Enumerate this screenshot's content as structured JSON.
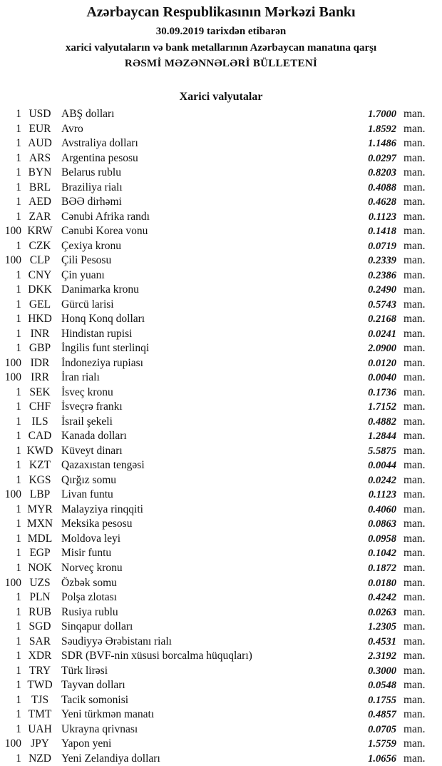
{
  "header": {
    "title": "Azərbaycan Respublikasının Mərkəzi Bankı",
    "date_line": "30.09.2019  tarixdən etibarən",
    "subtitle": "xarici valyutaların və bank metallarının Azərbaycan manatına qarşı",
    "bulletin": "RƏSMİ MƏZƏNNƏLƏRİ BÜLLETENİ"
  },
  "section_title": "Xarici valyutalar",
  "rates": [
    {
      "amount": "1",
      "code": "USD",
      "name": "ABŞ dolları",
      "value": "1.7000",
      "unit": "man."
    },
    {
      "amount": "1",
      "code": "EUR",
      "name": "Avro",
      "value": "1.8592",
      "unit": "man."
    },
    {
      "amount": "1",
      "code": "AUD",
      "name": "Avstraliya dolları",
      "value": "1.1486",
      "unit": "man."
    },
    {
      "amount": "1",
      "code": "ARS",
      "name": "Argentina pesosu",
      "value": "0.0297",
      "unit": "man."
    },
    {
      "amount": "1",
      "code": "BYN",
      "name": "Belarus rublu",
      "value": "0.8203",
      "unit": "man."
    },
    {
      "amount": "1",
      "code": "BRL",
      "name": "Braziliya rialı",
      "value": "0.4088",
      "unit": "man."
    },
    {
      "amount": "1",
      "code": "AED",
      "name": "BƏƏ dirhəmi",
      "value": "0.4628",
      "unit": "man."
    },
    {
      "amount": "1",
      "code": "ZAR",
      "name": "Cənubi Afrika randı",
      "value": "0.1123",
      "unit": "man."
    },
    {
      "amount": "100",
      "code": "KRW",
      "name": "Cənubi Korea vonu",
      "value": "0.1418",
      "unit": "man."
    },
    {
      "amount": "1",
      "code": "CZK",
      "name": "Çexiya kronu",
      "value": "0.0719",
      "unit": "man."
    },
    {
      "amount": "100",
      "code": "CLP",
      "name": "Çili Pesosu",
      "value": "0.2339",
      "unit": "man."
    },
    {
      "amount": "1",
      "code": "CNY",
      "name": "Çin yuanı",
      "value": "0.2386",
      "unit": "man."
    },
    {
      "amount": "1",
      "code": "DKK",
      "name": "Danimarka kronu",
      "value": "0.2490",
      "unit": "man."
    },
    {
      "amount": "1",
      "code": "GEL",
      "name": "Gürcü larisi",
      "value": "0.5743",
      "unit": "man."
    },
    {
      "amount": "1",
      "code": "HKD",
      "name": "Honq Konq dolları",
      "value": "0.2168",
      "unit": "man."
    },
    {
      "amount": "1",
      "code": "INR",
      "name": "Hindistan rupisi",
      "value": "0.0241",
      "unit": "man."
    },
    {
      "amount": "1",
      "code": "GBP",
      "name": "İngilis funt sterlinqi",
      "value": "2.0900",
      "unit": "man."
    },
    {
      "amount": "100",
      "code": "IDR",
      "name": "İndoneziya rupiası",
      "value": "0.0120",
      "unit": "man."
    },
    {
      "amount": "100",
      "code": "IRR",
      "name": "İran rialı",
      "value": "0.0040",
      "unit": "man."
    },
    {
      "amount": "1",
      "code": "SEK",
      "name": "İsveç kronu",
      "value": "0.1736",
      "unit": "man."
    },
    {
      "amount": "1",
      "code": "CHF",
      "name": "İsveçrə frankı",
      "value": "1.7152",
      "unit": "man."
    },
    {
      "amount": "1",
      "code": "ILS",
      "name": "İsrail şekeli",
      "value": "0.4882",
      "unit": "man."
    },
    {
      "amount": "1",
      "code": "CAD",
      "name": "Kanada dolları",
      "value": "1.2844",
      "unit": "man."
    },
    {
      "amount": "1",
      "code": "KWD",
      "name": "Küveyt dinarı",
      "value": "5.5875",
      "unit": "man."
    },
    {
      "amount": "1",
      "code": "KZT",
      "name": "Qazaxıstan tengəsi",
      "value": "0.0044",
      "unit": "man."
    },
    {
      "amount": "1",
      "code": "KGS",
      "name": "Qırğız somu",
      "value": "0.0242",
      "unit": "man."
    },
    {
      "amount": "100",
      "code": "LBP",
      "name": "Livan funtu",
      "value": "0.1123",
      "unit": "man."
    },
    {
      "amount": "1",
      "code": "MYR",
      "name": "Malayziya rinqqiti",
      "value": "0.4060",
      "unit": "man."
    },
    {
      "amount": "1",
      "code": "MXN",
      "name": "Meksika pesosu",
      "value": "0.0863",
      "unit": "man."
    },
    {
      "amount": "1",
      "code": "MDL",
      "name": "Moldova leyi",
      "value": "0.0958",
      "unit": "man."
    },
    {
      "amount": "1",
      "code": "EGP",
      "name": "Misir funtu",
      "value": "0.1042",
      "unit": "man."
    },
    {
      "amount": "1",
      "code": "NOK",
      "name": "Norveç kronu",
      "value": "0.1872",
      "unit": "man."
    },
    {
      "amount": "100",
      "code": "UZS",
      "name": "Özbək somu",
      "value": "0.0180",
      "unit": "man."
    },
    {
      "amount": "1",
      "code": "PLN",
      "name": "Polşa zlotası",
      "value": "0.4242",
      "unit": "man."
    },
    {
      "amount": "1",
      "code": "RUB",
      "name": "Rusiya rublu",
      "value": "0.0263",
      "unit": "man."
    },
    {
      "amount": "1",
      "code": "SGD",
      "name": "Sinqapur dolları",
      "value": "1.2305",
      "unit": "man."
    },
    {
      "amount": "1",
      "code": "SAR",
      "name": "Səudiyyə Ərəbistanı rialı",
      "value": "0.4531",
      "unit": "man."
    },
    {
      "amount": "1",
      "code": "XDR",
      "name": "SDR (BVF-nin xüsusi borcalma hüquqları)",
      "value": "2.3192",
      "unit": "man."
    },
    {
      "amount": "1",
      "code": "TRY",
      "name": "Türk lirəsi",
      "value": "0.3000",
      "unit": "man."
    },
    {
      "amount": "1",
      "code": "TWD",
      "name": "Tayvan dolları",
      "value": "0.0548",
      "unit": "man."
    },
    {
      "amount": "1",
      "code": "TJS",
      "name": "Tacik somonisi",
      "value": "0.1755",
      "unit": "man."
    },
    {
      "amount": "1",
      "code": "TMT",
      "name": "Yeni türkmən manatı",
      "value": "0.4857",
      "unit": "man."
    },
    {
      "amount": "1",
      "code": "UAH",
      "name": "Ukrayna qrivnası",
      "value": "0.0705",
      "unit": "man."
    },
    {
      "amount": "100",
      "code": "JPY",
      "name": "Yapon yeni",
      "value": "1.5759",
      "unit": "man."
    },
    {
      "amount": "1",
      "code": "NZD",
      "name": "Yeni Zelandiya dolları",
      "value": "1.0656",
      "unit": "man."
    }
  ]
}
